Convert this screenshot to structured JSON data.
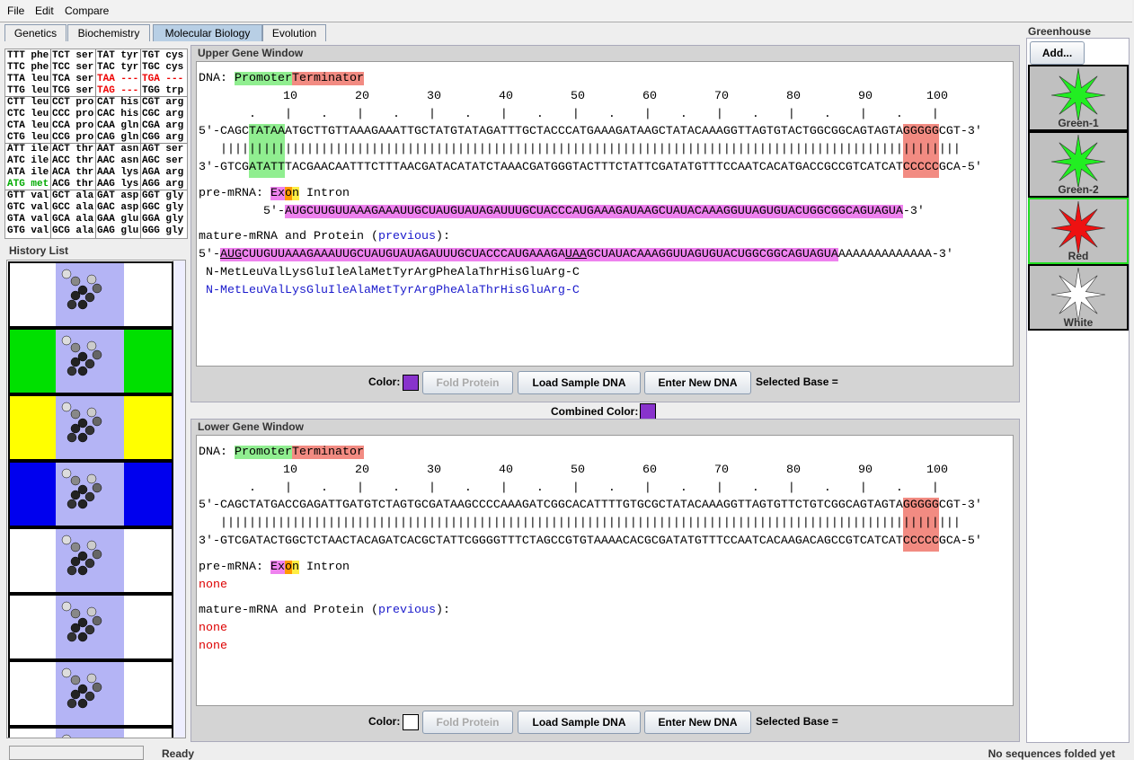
{
  "menu": [
    "File",
    "Edit",
    "Compare"
  ],
  "tabs": [
    "Genetics",
    "Biochemistry",
    "Molecular Biology",
    "Evolution"
  ],
  "codon_table": [
    [
      "TTT phe",
      "TCT ser",
      "TAT tyr",
      "TGT cys"
    ],
    [
      "TTC phe",
      "TCC ser",
      "TAC tyr",
      "TGC cys"
    ],
    [
      "TTA leu",
      "TCA ser",
      "TAA ---",
      "TGA ---"
    ],
    [
      "TTG leu",
      "TCG ser",
      "TAG ---",
      "TGG trp"
    ],
    [
      "CTT leu",
      "CCT pro",
      "CAT his",
      "CGT arg"
    ],
    [
      "CTC leu",
      "CCC pro",
      "CAC his",
      "CGC arg"
    ],
    [
      "CTA leu",
      "CCA pro",
      "CAA gln",
      "CGA arg"
    ],
    [
      "CTG leu",
      "CCG pro",
      "CAG gln",
      "CGG arg"
    ],
    [
      "ATT ile",
      "ACT thr",
      "AAT asn",
      "AGT ser"
    ],
    [
      "ATC ile",
      "ACC thr",
      "AAC asn",
      "AGC ser"
    ],
    [
      "ATA ile",
      "ACA thr",
      "AAA lys",
      "AGA arg"
    ],
    [
      "ATG met",
      "ACG thr",
      "AAG lys",
      "AGG arg"
    ],
    [
      "GTT val",
      "GCT ala",
      "GAT asp",
      "GGT gly"
    ],
    [
      "GTC val",
      "GCC ala",
      "GAC asp",
      "GGC gly"
    ],
    [
      "GTA val",
      "GCA ala",
      "GAA glu",
      "GGA gly"
    ],
    [
      "GTG val",
      "GCG ala",
      "GAG glu",
      "GGG gly"
    ]
  ],
  "history_list": {
    "title": "History List",
    "panel_colors": [
      "#ffffff",
      "#00e000",
      "#ffff00",
      "#0000ee",
      "#ffffff",
      "#ffffff",
      "#ffffff",
      "#ffffff"
    ]
  },
  "upper_window": {
    "title": "Upper Gene Window",
    "dna_label": "DNA:",
    "promoter": "Promoter",
    "terminator": "Terminator",
    "ruler_numbers": [
      10,
      20,
      30,
      40,
      50,
      60,
      70,
      80,
      90,
      100
    ],
    "ruler_marks": "     .    |    .    |    .    |    .    |    .    |    .    |    .    |    .    |    .    |    .    |",
    "top_strand": [
      "5'-CAGC",
      "TATAA",
      "ATGCTTGTTAAAGAAATTGCTATGTATAGATTTGCTACCCATGAAAGATAAGCTATACAAAGGTTAGTGTACTGGCGGCAGTAGTA",
      "GGGGG",
      "CGT-3'"
    ],
    "pairing": "|||||||||||||||||||||||||||||||||||||||||||||||||||||||||||||||||||||||||||||||||||||||||||||||||||||||",
    "bottom_strand": [
      "3'-GTCG",
      "ATATT",
      "TACGAACAATTTCTTTAACGATACATATCTAAACGATGGGTACTTTCTATTCGATATGTTTCCAATCACATGACCGCCGTCATCAT",
      "CCCCC",
      "GCA-5'"
    ],
    "pre_mrna_label": "pre-mRNA:",
    "exon": "Exon",
    "intron": "Intron",
    "pre_mrna": [
      "5'-",
      "AUGCUUGUUAAAGAAAUUGCUAUGUAUAGAUUUGCUACCCAUGAAAGAUAAGCUAUACAAAGGUUAGUGUACUGGCGGCAGUAGUA",
      "-3'"
    ],
    "mature_label": "mature-mRNA and Protein (",
    "previous": "previous",
    "mature_label_end": "):",
    "mature_mrna": [
      "5'-",
      "AUG",
      "CUUGUUAAAGAAAUUGCUAUGUAUAGAUUUGCUACCCAUGAAAGA",
      "UAA",
      "GCUAUACAAAGGUUAGUGUACUGGCGGCAGUAGUA",
      "AAAAAAAAAAAAA-3'"
    ],
    "protein": "N-MetLeuValLysGluIleAlaMetTyrArgPheAlaThrHisGluArg-C",
    "previous_protein": "N-MetLeuValLysGluIleAlaMetTyrArgPheAlaThrHisGluArg-C",
    "color_label": "Color:",
    "color": "#8833cc",
    "buttons": [
      "Fold Protein",
      "Load Sample DNA",
      "Enter New DNA"
    ],
    "selected_base": "Selected Base ="
  },
  "combined": {
    "label": "Combined Color:",
    "color": "#8833cc"
  },
  "lower_window": {
    "title": "Lower Gene Window",
    "dna_label": "DNA:",
    "promoter": "Promoter",
    "terminator": "Terminator",
    "ruler_numbers": [
      10,
      20,
      30,
      40,
      50,
      60,
      70,
      80,
      90,
      100
    ],
    "ruler_marks": "     .    |    .    |    .    |    .    |    .    |    .    |    .    |    .    |    .    |    .    |",
    "top_strand": [
      "5'-CAGCTATGACCGAGATTGATGTCTAGTGCGATAAGCCCCAAAGATCGGCACATTTTGTGCGCTATACAAAGGTTAGTGTTCTGTCGGCAGTAGTA",
      "GGGGG",
      "CGT-3'"
    ],
    "pairing": "|||||||||||||||||||||||||||||||||||||||||||||||||||||||||||||||||||||||||||||||||||||||||||||||||||||||",
    "bottom_strand": [
      "3'-GTCGATACTGGCTCTAACTACAGATCACGCTATTCGGGGTTTCTAGCCGTGTAAAACACGCGATATGTTTCCAATCACAAGACAGCCGTCATCAT",
      "CCCCC",
      "GCA-5'"
    ],
    "pre_mrna_label": "pre-mRNA:",
    "exon": "Exon",
    "intron": "Intron",
    "pre_mrna_none": "none",
    "mature_label": "mature-mRNA and Protein (",
    "previous": "previous",
    "mature_label_end": "):",
    "mature_none": "none",
    "protein_none": "none",
    "color_label": "Color:",
    "color": "#ffffff",
    "buttons": [
      "Fold Protein",
      "Load Sample DNA",
      "Enter New DNA"
    ],
    "selected_base": "Selected Base ="
  },
  "greenhouse": {
    "title": "Greenhouse",
    "add": "Add...",
    "organisms": [
      {
        "name": "Green-1",
        "color": "#22ee22"
      },
      {
        "name": "Green-2",
        "color": "#22ee22"
      },
      {
        "name": "Red",
        "color": "#ee1111"
      },
      {
        "name": "White",
        "color": "#ffffff"
      }
    ]
  },
  "status": {
    "left": "Ready",
    "right": "No sequences folded yet"
  }
}
